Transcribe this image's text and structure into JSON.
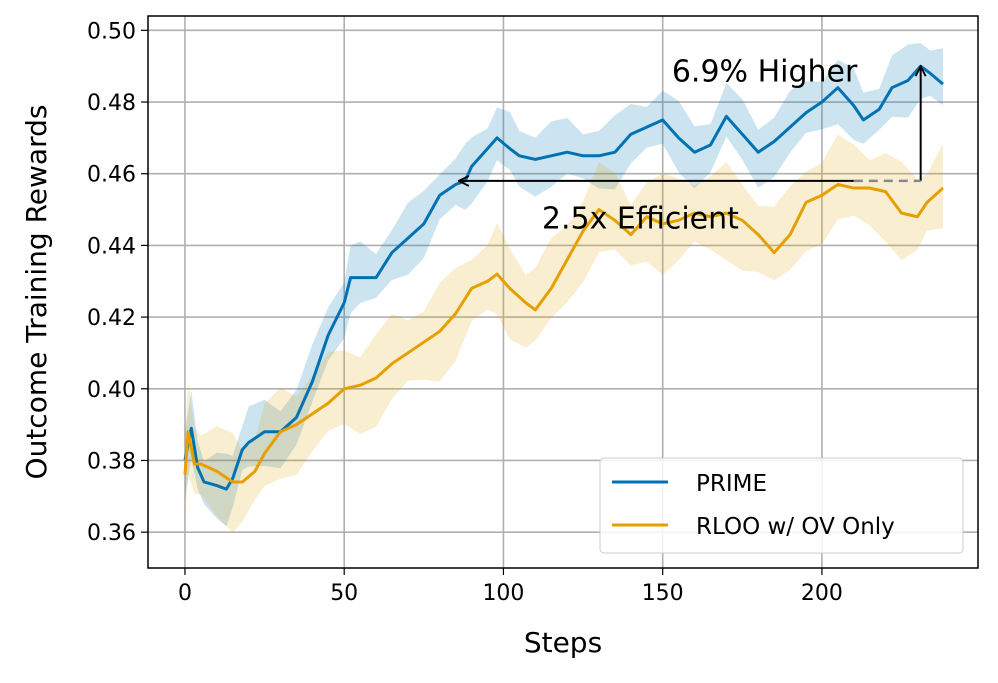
{
  "chart_data": {
    "type": "line",
    "title": "",
    "xlabel": "Steps",
    "ylabel": "Outcome Training Rewards",
    "xlim": [
      -11.6,
      249
    ],
    "ylim": [
      0.35,
      0.504
    ],
    "xticks": [
      0,
      50,
      100,
      150,
      200
    ],
    "yticks": [
      0.36,
      0.38,
      0.4,
      0.42,
      0.44,
      0.46,
      0.48,
      0.5
    ],
    "ytick_labels": [
      "0.36",
      "0.38",
      "0.40",
      "0.42",
      "0.44",
      "0.46",
      "0.48",
      "0.50"
    ],
    "grid": true,
    "legend": {
      "placement": "bottom-right"
    },
    "series": [
      {
        "name": "PRIME",
        "color": "#0072B2",
        "band_halfwidth": 0.008,
        "x": [
          0,
          2,
          4,
          6,
          10,
          13,
          15,
          18,
          20,
          25,
          30,
          35,
          40,
          45,
          50,
          52,
          55,
          60,
          65,
          70,
          75,
          80,
          85,
          88,
          90,
          95,
          98,
          102,
          105,
          110,
          115,
          120,
          125,
          130,
          135,
          140,
          145,
          150,
          155,
          160,
          165,
          170,
          175,
          180,
          185,
          190,
          195,
          200,
          205,
          210,
          213,
          218,
          222,
          227,
          231,
          234,
          238
        ],
        "y": [
          0.38,
          0.389,
          0.378,
          0.374,
          0.373,
          0.372,
          0.375,
          0.383,
          0.385,
          0.388,
          0.388,
          0.392,
          0.402,
          0.415,
          0.424,
          0.431,
          0.431,
          0.431,
          0.438,
          0.442,
          0.446,
          0.454,
          0.457,
          0.458,
          0.462,
          0.467,
          0.47,
          0.467,
          0.465,
          0.464,
          0.465,
          0.466,
          0.465,
          0.465,
          0.466,
          0.471,
          0.473,
          0.475,
          0.47,
          0.466,
          0.468,
          0.476,
          0.471,
          0.466,
          0.469,
          0.473,
          0.477,
          0.48,
          0.484,
          0.479,
          0.475,
          0.478,
          0.484,
          0.486,
          0.49,
          0.488,
          0.485
        ]
      },
      {
        "name": "RLOO w/ OV Only",
        "color": "#E69F00",
        "band_halfwidth": 0.011,
        "x": [
          0,
          1,
          3,
          5,
          10,
          15,
          18,
          22,
          25,
          30,
          35,
          40,
          45,
          50,
          55,
          60,
          65,
          70,
          75,
          80,
          85,
          90,
          95,
          98,
          102,
          107,
          110,
          115,
          120,
          125,
          130,
          135,
          140,
          145,
          150,
          155,
          160,
          165,
          170,
          175,
          180,
          185,
          190,
          195,
          200,
          205,
          210,
          215,
          220,
          225,
          230,
          233,
          238
        ],
        "y": [
          0.376,
          0.388,
          0.379,
          0.379,
          0.377,
          0.374,
          0.374,
          0.377,
          0.382,
          0.388,
          0.39,
          0.393,
          0.396,
          0.4,
          0.401,
          0.403,
          0.407,
          0.41,
          0.413,
          0.416,
          0.421,
          0.428,
          0.43,
          0.432,
          0.428,
          0.424,
          0.422,
          0.428,
          0.436,
          0.444,
          0.45,
          0.447,
          0.443,
          0.448,
          0.446,
          0.447,
          0.449,
          0.448,
          0.449,
          0.447,
          0.443,
          0.438,
          0.443,
          0.452,
          0.454,
          0.457,
          0.456,
          0.456,
          0.455,
          0.449,
          0.448,
          0.452,
          0.456
        ]
      }
    ],
    "annotations": [
      {
        "text": "6.9% Higher",
        "x": 182,
        "y": 0.4885,
        "arrow": {
          "from": [
            231,
            0.458
          ],
          "to": [
            231,
            0.49
          ]
        }
      },
      {
        "text": "2.5x Efficient",
        "x": 143,
        "y": 0.4475,
        "arrow": {
          "from": [
            210,
            0.458
          ],
          "to": [
            86,
            0.458
          ]
        }
      },
      {
        "dashed": {
          "from": [
            210,
            0.458
          ],
          "to": [
            231,
            0.458
          ],
          "color": "#888888"
        }
      }
    ]
  }
}
